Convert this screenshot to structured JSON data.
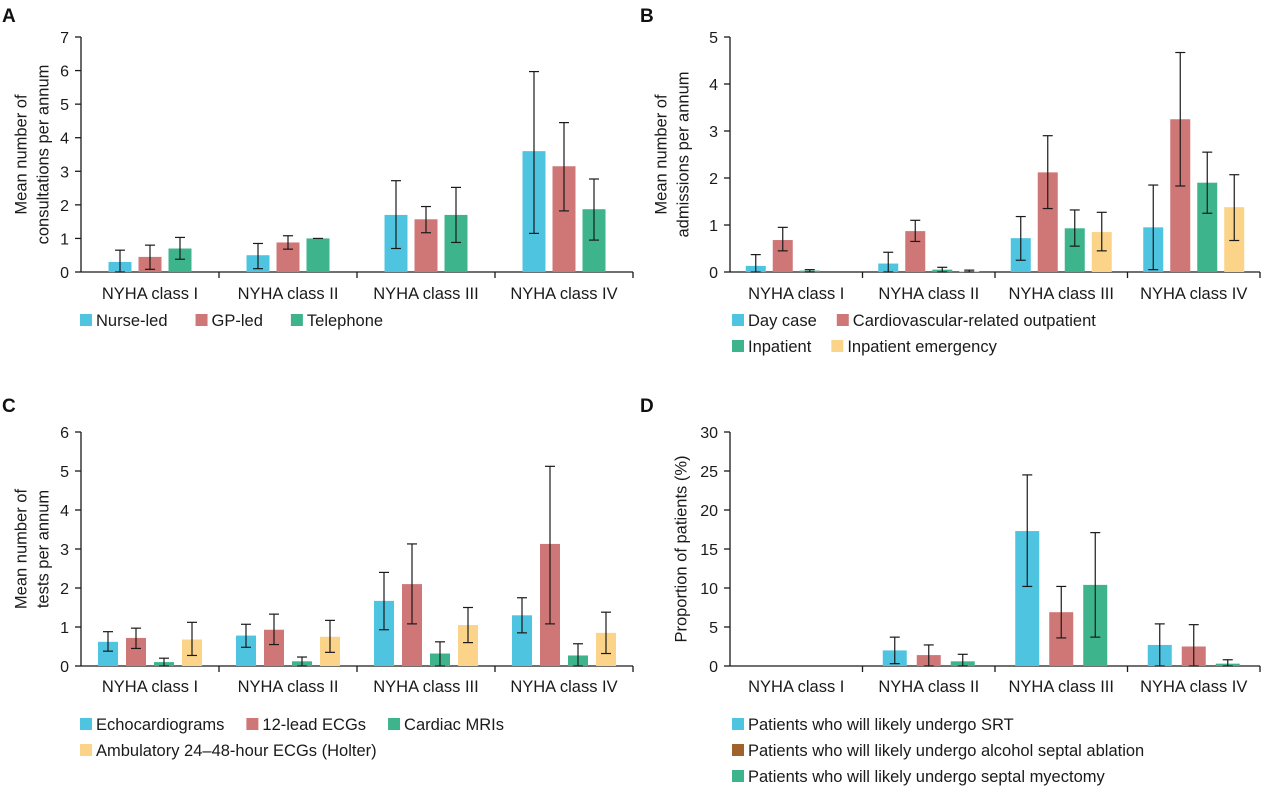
{
  "colors": {
    "blue": "#4fc4e0",
    "red": "#cf7777",
    "green": "#3db48c",
    "yellow": "#fbd48a",
    "brown": "#a0622a",
    "axis": "#1a1a1a"
  },
  "chart_data": [
    {
      "panel": "A",
      "type": "bar",
      "ylabel": [
        "Mean number of",
        "consultations per annum"
      ],
      "ylim": [
        0,
        7
      ],
      "yticks": [
        0,
        1,
        2,
        3,
        4,
        5,
        6,
        7
      ],
      "categories": [
        "NYHA class I",
        "NYHA class II",
        "NYHA class III",
        "NYHA class IV"
      ],
      "legend_rows": [
        [
          0,
          1,
          2
        ]
      ],
      "series": [
        {
          "name": "Nurse-led",
          "color": "blue",
          "values": [
            0.3,
            0.5,
            1.7,
            3.6
          ],
          "err_low": [
            0.0,
            0.1,
            0.7,
            1.15
          ],
          "err_high": [
            0.65,
            0.85,
            2.72,
            5.97
          ]
        },
        {
          "name": "GP-led",
          "color": "red",
          "values": [
            0.45,
            0.88,
            1.57,
            3.15
          ],
          "err_low": [
            0.08,
            0.68,
            1.17,
            1.82
          ],
          "err_high": [
            0.8,
            1.08,
            1.95,
            4.45
          ]
        },
        {
          "name": "Telephone",
          "color": "green",
          "values": [
            0.7,
            1.0,
            1.7,
            1.87
          ],
          "err_low": [
            0.38,
            1.0,
            0.88,
            0.95
          ],
          "err_high": [
            1.03,
            1.0,
            2.52,
            2.77
          ]
        }
      ]
    },
    {
      "panel": "B",
      "type": "bar",
      "ylabel": [
        "Mean number of",
        "admissions per annum"
      ],
      "ylim": [
        0,
        5
      ],
      "yticks": [
        0,
        1,
        2,
        3,
        4,
        5
      ],
      "categories": [
        "NYHA class I",
        "NYHA class II",
        "NYHA class III",
        "NYHA class IV"
      ],
      "legend_rows": [
        [
          0,
          1
        ],
        [
          2,
          3
        ]
      ],
      "series": [
        {
          "name": "Day case",
          "color": "blue",
          "values": [
            0.13,
            0.18,
            0.72,
            0.95
          ],
          "err_low": [
            0.0,
            0.0,
            0.25,
            0.05
          ],
          "err_high": [
            0.37,
            0.42,
            1.18,
            1.85
          ]
        },
        {
          "name": "Cardiovascular-related outpatient",
          "color": "red",
          "values": [
            0.68,
            0.87,
            2.12,
            3.25
          ],
          "err_low": [
            0.45,
            0.65,
            1.35,
            1.83
          ],
          "err_high": [
            0.95,
            1.1,
            2.9,
            4.67
          ]
        },
        {
          "name": "Inpatient",
          "color": "green",
          "values": [
            0.03,
            0.05,
            0.93,
            1.9
          ],
          "err_low": [
            0.0,
            0.0,
            0.55,
            1.25
          ],
          "err_high": [
            0.05,
            0.1,
            1.32,
            2.55
          ]
        },
        {
          "name": "Inpatient emergency",
          "color": "yellow",
          "values": [
            0.0,
            0.02,
            0.85,
            1.38
          ],
          "err_low": [
            0.0,
            0.0,
            0.45,
            0.67
          ],
          "err_high": [
            0.0,
            0.04,
            1.27,
            2.07
          ]
        }
      ]
    },
    {
      "panel": "C",
      "type": "bar",
      "ylabel": [
        "Mean number of",
        "tests per annum"
      ],
      "ylim": [
        0,
        6
      ],
      "yticks": [
        0,
        1,
        2,
        3,
        4,
        5,
        6
      ],
      "categories": [
        "NYHA class I",
        "NYHA class II",
        "NYHA class III",
        "NYHA class IV"
      ],
      "legend_rows": [
        [
          0,
          1,
          2
        ],
        [
          3
        ]
      ],
      "series": [
        {
          "name": "Echocardiograms",
          "color": "blue",
          "values": [
            0.62,
            0.78,
            1.67,
            1.3
          ],
          "err_low": [
            0.38,
            0.48,
            0.93,
            0.85
          ],
          "err_high": [
            0.88,
            1.07,
            2.4,
            1.75
          ]
        },
        {
          "name": "12-lead ECGs",
          "color": "red",
          "values": [
            0.72,
            0.93,
            2.1,
            3.13
          ],
          "err_low": [
            0.45,
            0.55,
            1.08,
            1.08
          ],
          "err_high": [
            0.97,
            1.33,
            3.13,
            5.12
          ]
        },
        {
          "name": "Cardiac MRIs",
          "color": "green",
          "values": [
            0.1,
            0.12,
            0.32,
            0.27
          ],
          "err_low": [
            0.0,
            0.0,
            0.0,
            0.0
          ],
          "err_high": [
            0.2,
            0.23,
            0.62,
            0.57
          ]
        },
        {
          "name": "Ambulatory 24–48-hour ECGs (Holter)",
          "color": "yellow",
          "values": [
            0.68,
            0.75,
            1.05,
            0.85
          ],
          "err_low": [
            0.27,
            0.35,
            0.6,
            0.32
          ],
          "err_high": [
            1.12,
            1.17,
            1.5,
            1.38
          ]
        }
      ]
    },
    {
      "panel": "D",
      "type": "bar",
      "ylabel": [
        "Proportion of patients (%)"
      ],
      "ylim": [
        0,
        30
      ],
      "yticks": [
        0,
        5,
        10,
        15,
        20,
        25,
        30
      ],
      "categories": [
        "NYHA class I",
        "NYHA class II",
        "NYHA class III",
        "NYHA class IV"
      ],
      "legend_rows": [
        [
          0
        ],
        [
          1
        ],
        [
          2
        ]
      ],
      "series": [
        {
          "name": "Patients who will likely undergo SRT",
          "color": "blue",
          "values": [
            0,
            2.0,
            17.3,
            2.7
          ],
          "err_low": [
            0,
            0.3,
            10.2,
            0.0
          ],
          "err_high": [
            0,
            3.7,
            24.5,
            5.4
          ]
        },
        {
          "name": "Patients who will likely undergo alcohol septal ablation",
          "color": "red",
          "values": [
            0,
            1.4,
            6.9,
            2.5
          ],
          "err_low": [
            0,
            0.0,
            3.6,
            0.0
          ],
          "err_high": [
            0,
            2.7,
            10.2,
            5.3
          ]
        },
        {
          "name": "Patients who will likely undergo septal myectomy",
          "color": "green",
          "values": [
            0,
            0.6,
            10.4,
            0.3
          ],
          "err_low": [
            0,
            0.0,
            3.7,
            0.0
          ],
          "err_high": [
            0,
            1.5,
            17.1,
            0.8
          ]
        }
      ],
      "legend_colors": [
        "blue",
        "brown",
        "green"
      ]
    }
  ]
}
